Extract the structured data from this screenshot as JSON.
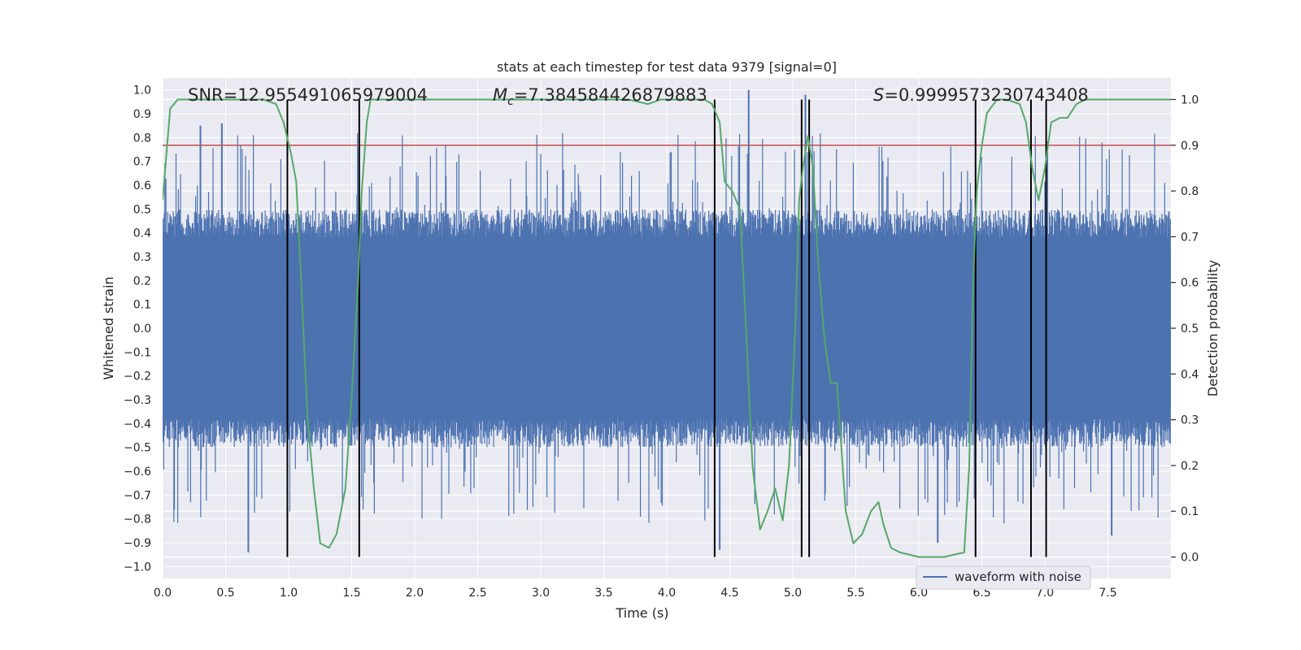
{
  "chart_data": {
    "type": "line",
    "title": "stats at each timestep for test data 9379 [signal=0]",
    "xlabel": "Time (s)",
    "ylabel_left": "Whitened strain",
    "ylabel_right": "Detection probability",
    "xlim": [
      0.0,
      8.0
    ],
    "ylim_left": [
      -1.05,
      1.05
    ],
    "ylim_right": [
      -0.047,
      1.047
    ],
    "x_ticks": [
      "0.0",
      "0.5",
      "1.0",
      "1.5",
      "2.0",
      "2.5",
      "3.0",
      "3.5",
      "4.0",
      "4.5",
      "5.0",
      "5.5",
      "6.0",
      "6.5",
      "7.0",
      "7.5"
    ],
    "y_left_ticks": [
      "1.0",
      "0.9",
      "0.8",
      "0.7",
      "0.6",
      "0.5",
      "0.4",
      "0.3",
      "0.2",
      "0.1",
      "0.0",
      "−0.1",
      "−0.2",
      "−0.3",
      "−0.4",
      "−0.5",
      "−0.6",
      "−0.7",
      "−0.8",
      "−0.9",
      "−1.0"
    ],
    "y_right_ticks": [
      "1.0",
      "0.9",
      "0.8",
      "0.7",
      "0.6",
      "0.5",
      "0.4",
      "0.3",
      "0.2",
      "0.1",
      "0.0"
    ],
    "grid": true,
    "annotations": {
      "snr": "SNR=12.955491065979004",
      "mc_symbol": "M",
      "mc_sub": "c",
      "mc_value": "=7.384584426879883",
      "s_symbol": "S",
      "s_value": "=0.9999573230743408"
    },
    "threshold_right": 0.9,
    "vertical_lines_x": [
      0.99,
      1.56,
      4.38,
      5.07,
      5.13,
      6.45,
      6.89,
      7.01
    ],
    "legend": {
      "label": "waveform with noise",
      "placement": "lower-right"
    },
    "series": [
      {
        "name": "waveform with noise",
        "color": "#4c72b0",
        "axis": "left",
        "style": "noise band",
        "core_amplitude": 0.38,
        "typical_spike_max": 0.82,
        "notable_spikes": [
          {
            "x": 0.3,
            "y": 0.85
          },
          {
            "x": 0.47,
            "y": 0.86
          },
          {
            "x": 0.68,
            "y": -0.94
          },
          {
            "x": 4.42,
            "y": -0.93
          },
          {
            "x": 4.65,
            "y": 1.0
          },
          {
            "x": 5.1,
            "y": 0.98
          },
          {
            "x": 6.15,
            "y": -0.9
          },
          {
            "x": 7.53,
            "y": -0.87
          }
        ]
      },
      {
        "name": "",
        "color": "#55a868",
        "axis": "right",
        "x": [
          0.0,
          0.06,
          0.12,
          0.2,
          0.4,
          0.6,
          0.8,
          0.9,
          0.96,
          1.02,
          1.06,
          1.1,
          1.15,
          1.2,
          1.25,
          1.32,
          1.38,
          1.45,
          1.5,
          1.55,
          1.58,
          1.62,
          1.65,
          1.8,
          2.2,
          2.6,
          3.0,
          3.4,
          3.7,
          3.85,
          3.95,
          4.1,
          4.2,
          4.3,
          4.36,
          4.42,
          4.46,
          4.52,
          4.58,
          4.62,
          4.68,
          4.74,
          4.8,
          4.86,
          4.92,
          4.97,
          5.02,
          5.05,
          5.08,
          5.12,
          5.16,
          5.2,
          5.25,
          5.3,
          5.35,
          5.42,
          5.48,
          5.55,
          5.62,
          5.68,
          5.72,
          5.78,
          5.85,
          6.0,
          6.2,
          6.36,
          6.4,
          6.43,
          6.46,
          6.5,
          6.54,
          6.62,
          6.7,
          6.8,
          6.85,
          6.9,
          6.95,
          7.0,
          7.05,
          7.12,
          7.18,
          7.25,
          7.32,
          7.45,
          7.7,
          8.0
        ],
        "y": [
          0.78,
          0.98,
          1.0,
          1.0,
          1.0,
          1.0,
          1.0,
          0.99,
          0.95,
          0.88,
          0.82,
          0.6,
          0.3,
          0.15,
          0.03,
          0.02,
          0.05,
          0.15,
          0.35,
          0.6,
          0.8,
          0.95,
          1.0,
          1.0,
          1.0,
          1.0,
          1.0,
          1.0,
          1.0,
          0.99,
          1.0,
          1.0,
          1.0,
          1.0,
          0.99,
          0.95,
          0.82,
          0.8,
          0.76,
          0.55,
          0.2,
          0.06,
          0.1,
          0.15,
          0.08,
          0.2,
          0.5,
          0.78,
          0.85,
          0.92,
          0.85,
          0.65,
          0.48,
          0.38,
          0.38,
          0.1,
          0.03,
          0.05,
          0.1,
          0.12,
          0.07,
          0.02,
          0.01,
          0.0,
          0.0,
          0.01,
          0.2,
          0.6,
          0.8,
          0.9,
          0.97,
          1.0,
          1.0,
          0.99,
          0.95,
          0.85,
          0.78,
          0.85,
          0.95,
          0.96,
          0.96,
          0.99,
          1.0,
          1.0,
          1.0,
          1.0
        ]
      },
      {
        "name": "",
        "color": "#c44e52",
        "axis": "right",
        "style": "horizontal threshold",
        "value": 0.9
      }
    ]
  }
}
